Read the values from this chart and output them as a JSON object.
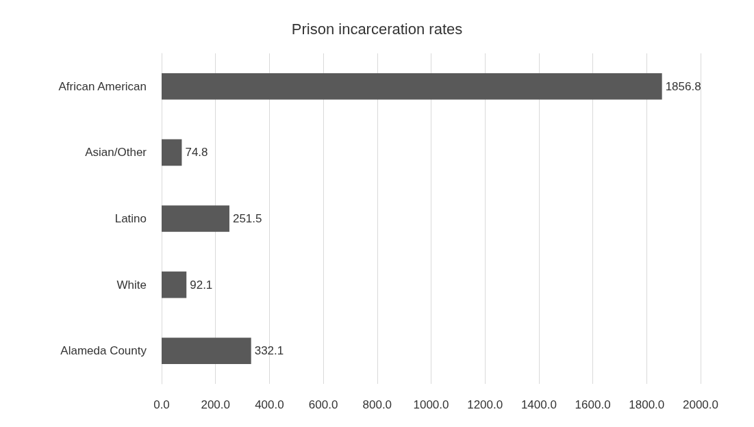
{
  "chart_data": {
    "type": "bar",
    "orientation": "horizontal",
    "title": "Prison incarceration rates",
    "categories": [
      "African American",
      "Asian/Other",
      "Latino",
      "White",
      "Alameda County"
    ],
    "values": [
      1856.8,
      74.8,
      251.5,
      92.1,
      332.1
    ],
    "color": "#595959",
    "xlim": [
      0,
      2000
    ],
    "xticks": [
      {
        "value": 0,
        "label": "0.0"
      },
      {
        "value": 200,
        "label": "200.0"
      },
      {
        "value": 400,
        "label": "400.0"
      },
      {
        "value": 600,
        "label": "600.0"
      },
      {
        "value": 800,
        "label": "800.0"
      },
      {
        "value": 1000,
        "label": "1000.0"
      },
      {
        "value": 1200,
        "label": "1200.0"
      },
      {
        "value": 1400,
        "label": "1400.0"
      },
      {
        "value": 1600,
        "label": "1600.0"
      },
      {
        "value": 1800,
        "label": "1800.0"
      },
      {
        "value": 2000,
        "label": "2000.0"
      }
    ],
    "grid": "x",
    "data_labels": true
  }
}
